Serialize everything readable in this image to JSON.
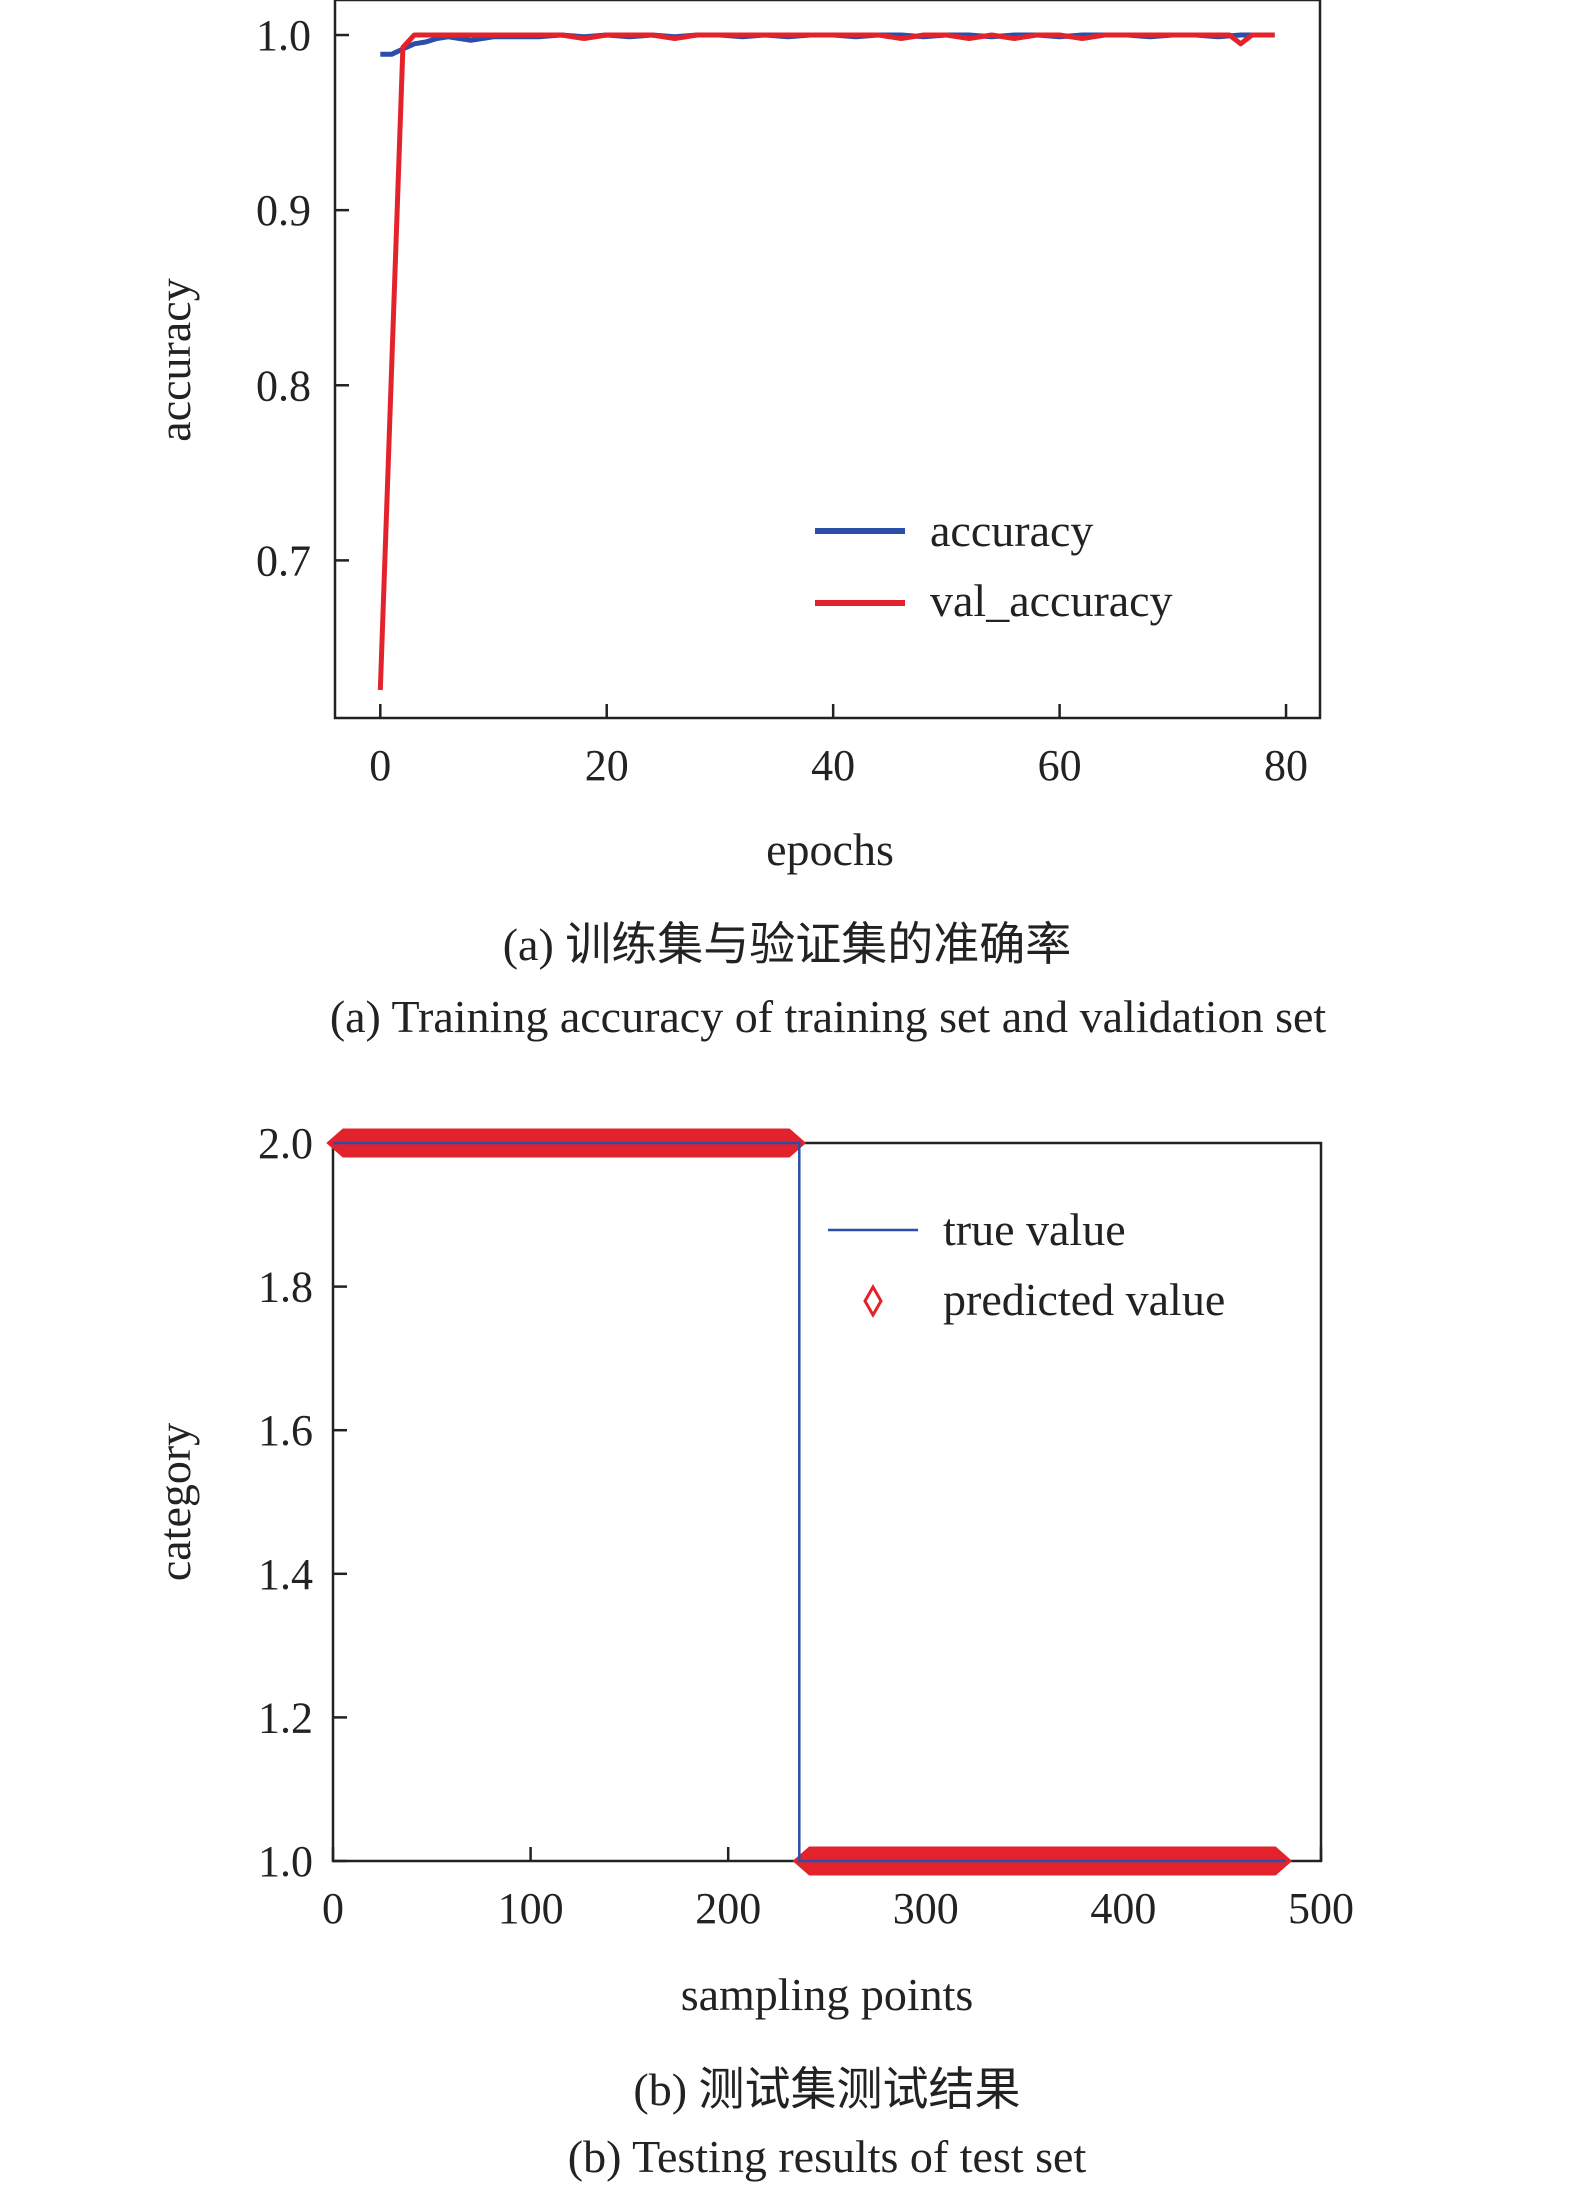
{
  "chart_data": [
    {
      "type": "line",
      "xlabel": "epochs",
      "ylabel": "accuracy",
      "xlim": [
        -4,
        83
      ],
      "ylim": [
        0.61,
        1.02
      ],
      "xticks": [
        0,
        20,
        40,
        60,
        80
      ],
      "yticks": [
        0.7,
        0.8,
        0.9,
        1.0
      ],
      "ytick_labels": [
        "0.7",
        "0.8",
        "0.9",
        "1.0"
      ],
      "legend_position": "lower-right",
      "grid": false,
      "series": [
        {
          "name": "accuracy",
          "color": "#2b4ea8",
          "x": [
            0,
            1,
            2,
            3,
            4,
            5,
            6,
            7,
            8,
            9,
            10,
            12,
            14,
            16,
            18,
            20,
            22,
            24,
            26,
            28,
            30,
            32,
            34,
            36,
            38,
            40,
            42,
            44,
            46,
            48,
            50,
            52,
            54,
            56,
            58,
            60,
            62,
            64,
            66,
            68,
            70,
            72,
            74,
            76,
            78,
            79
          ],
          "y": [
            0.989,
            0.989,
            0.992,
            0.995,
            0.996,
            0.998,
            0.999,
            0.998,
            0.997,
            0.998,
            0.999,
            0.999,
            0.999,
            1.0,
            0.999,
            1.0,
            0.999,
            1.0,
            0.999,
            1.0,
            1.0,
            0.999,
            1.0,
            0.999,
            1.0,
            1.0,
            0.999,
            1.0,
            1.0,
            0.999,
            1.0,
            1.0,
            0.999,
            1.0,
            1.0,
            0.999,
            1.0,
            1.0,
            1.0,
            0.999,
            1.0,
            1.0,
            0.999,
            1.0,
            1.0,
            1.0
          ]
        },
        {
          "name": "val_accuracy",
          "color": "#e2232b",
          "x": [
            0,
            2,
            3,
            4,
            6,
            8,
            10,
            12,
            14,
            16,
            18,
            20,
            22,
            24,
            26,
            28,
            30,
            32,
            34,
            36,
            38,
            40,
            42,
            44,
            46,
            48,
            50,
            52,
            54,
            56,
            58,
            60,
            62,
            64,
            66,
            68,
            70,
            72,
            74,
            75,
            76,
            77,
            78,
            79
          ],
          "y": [
            0.626,
            0.993,
            1.0,
            1.0,
            1.0,
            1.0,
            1.0,
            1.0,
            1.0,
            1.0,
            0.998,
            1.0,
            1.0,
            1.0,
            0.998,
            1.0,
            1.0,
            1.0,
            1.0,
            1.0,
            1.0,
            1.0,
            1.0,
            1.0,
            0.998,
            1.0,
            1.0,
            0.998,
            1.0,
            0.998,
            1.0,
            1.0,
            0.998,
            1.0,
            1.0,
            1.0,
            1.0,
            1.0,
            1.0,
            1.0,
            0.995,
            1.0,
            1.0,
            1.0
          ]
        }
      ],
      "caption_cn": "(a) 训练集与验证集的准确率",
      "caption_en": "(a) Training accuracy of training set and validation set"
    },
    {
      "type": "line",
      "xlabel": "sampling points",
      "ylabel": "category",
      "xlim": [
        0,
        500
      ],
      "ylim": [
        1.0,
        2.0
      ],
      "xticks": [
        0,
        100,
        200,
        300,
        400,
        500
      ],
      "yticks": [
        1.0,
        1.2,
        1.4,
        1.6,
        1.8,
        2.0
      ],
      "ytick_labels": [
        "1.0",
        "1.2",
        "1.4",
        "1.6",
        "1.8",
        "2.0"
      ],
      "legend_position": "upper-right",
      "grid": false,
      "series": [
        {
          "name": "true value",
          "color": "#2b4ea8",
          "x": [
            0,
            236,
            236,
            482
          ],
          "y": [
            2,
            2,
            1,
            1
          ]
        },
        {
          "name": "predicted value",
          "color": "#e2232b",
          "marker": "diamond",
          "segments": [
            {
              "x_start": 0,
              "x_end": 236,
              "value": 2
            },
            {
              "x_start": 236,
              "x_end": 482,
              "value": 1
            }
          ]
        }
      ],
      "caption_cn": "(b) 测试集测试结果",
      "caption_en": "(b) Testing results of test set"
    }
  ]
}
